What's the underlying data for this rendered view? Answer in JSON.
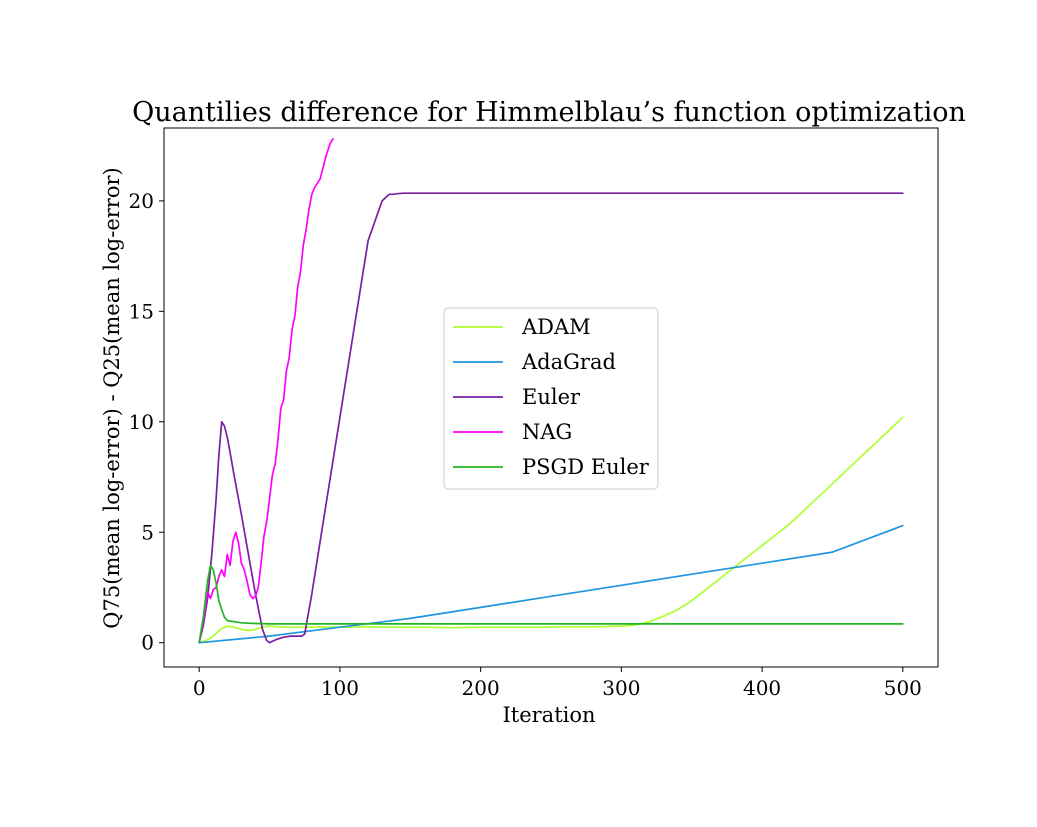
{
  "chart_data": {
    "type": "line",
    "title": "Quantilies difference for Himmelblau’s function optimization",
    "xlabel": "Iteration",
    "ylabel": "Q75(mean log-error) - Q25(mean log-error)",
    "xlim": [
      -25,
      525
    ],
    "ylim": [
      -1.1,
      23.3
    ],
    "xticks": [
      0,
      100,
      200,
      300,
      400,
      500
    ],
    "yticks": [
      0,
      5,
      10,
      15,
      20
    ],
    "grid": false,
    "legend_position": "center",
    "series": [
      {
        "name": "ADAM",
        "color": "#adff2f",
        "x": [
          0,
          5,
          10,
          15,
          20,
          25,
          30,
          35,
          40,
          45,
          50,
          60,
          70,
          80,
          90,
          100,
          120,
          140,
          160,
          180,
          200,
          220,
          240,
          260,
          280,
          300,
          310,
          320,
          330,
          340,
          350,
          360,
          370,
          380,
          390,
          400,
          410,
          420,
          430,
          440,
          450,
          460,
          470,
          480,
          490,
          500
        ],
        "y": [
          0,
          0.1,
          0.3,
          0.6,
          0.75,
          0.7,
          0.6,
          0.55,
          0.6,
          0.7,
          0.75,
          0.7,
          0.7,
          0.7,
          0.72,
          0.7,
          0.72,
          0.7,
          0.7,
          0.68,
          0.7,
          0.7,
          0.7,
          0.72,
          0.72,
          0.75,
          0.8,
          0.95,
          1.2,
          1.5,
          1.9,
          2.4,
          2.9,
          3.4,
          3.9,
          4.4,
          4.9,
          5.4,
          6.0,
          6.6,
          7.2,
          7.8,
          8.4,
          9.0,
          9.6,
          10.2
        ]
      },
      {
        "name": "AdaGrad",
        "color": "#1f96e0",
        "x": [
          0,
          50,
          100,
          150,
          200,
          250,
          300,
          350,
          400,
          450,
          500
        ],
        "y": [
          0,
          0.3,
          0.7,
          1.1,
          1.6,
          2.1,
          2.6,
          3.1,
          3.6,
          4.1,
          5.3
        ]
      },
      {
        "name": "Euler",
        "color": "#7b1fa2",
        "x": [
          0,
          3,
          6,
          9,
          12,
          14,
          16,
          18,
          20,
          22,
          25,
          30,
          35,
          40,
          45,
          48,
          50,
          55,
          60,
          65,
          70,
          73,
          75,
          80,
          90,
          100,
          110,
          120,
          130,
          135,
          138,
          140,
          145,
          150,
          200,
          300,
          400,
          500
        ],
        "y": [
          0,
          0.8,
          2.0,
          4.0,
          6.5,
          8.5,
          10.0,
          9.8,
          9.3,
          8.6,
          7.5,
          5.8,
          4.0,
          2.2,
          0.6,
          0.1,
          0.0,
          0.15,
          0.25,
          0.3,
          0.3,
          0.3,
          0.4,
          2.2,
          6.2,
          10.2,
          14.2,
          18.2,
          20.0,
          20.3,
          20.3,
          20.32,
          20.35,
          20.35,
          20.35,
          20.35,
          20.35,
          20.35
        ]
      },
      {
        "name": "NAG",
        "color": "#ff00ff",
        "x": [
          0,
          3,
          6,
          8,
          10,
          12,
          14,
          16,
          18,
          20,
          22,
          24,
          26,
          28,
          30,
          32,
          34,
          36,
          38,
          40,
          42,
          44,
          46,
          48,
          50,
          52,
          54,
          56,
          58,
          60,
          62,
          64,
          66,
          68,
          70,
          72,
          74,
          76,
          78,
          80,
          82,
          84,
          86,
          88,
          90,
          92,
          93,
          94,
          95
        ],
        "y": [
          0,
          1.0,
          2.3,
          2.0,
          2.4,
          2.5,
          3.0,
          3.3,
          3.0,
          4.0,
          3.5,
          4.6,
          5.0,
          4.5,
          3.6,
          3.3,
          2.8,
          2.2,
          2.0,
          2.1,
          2.5,
          3.6,
          4.8,
          5.5,
          6.5,
          7.6,
          8.1,
          9.2,
          10.6,
          11.0,
          12.3,
          12.9,
          14.2,
          14.8,
          16.1,
          16.8,
          18.0,
          18.7,
          19.6,
          20.3,
          20.6,
          20.8,
          21.0,
          21.5,
          22.0,
          22.4,
          22.6,
          22.7,
          22.8
        ]
      },
      {
        "name": "PSGD Euler",
        "color": "#22b522",
        "x": [
          0,
          3,
          6,
          8,
          10,
          12,
          14,
          16,
          18,
          20,
          25,
          30,
          40,
          50,
          60,
          80,
          100,
          150,
          200,
          250,
          300,
          350,
          400,
          450,
          500
        ],
        "y": [
          0,
          1.2,
          2.8,
          3.5,
          3.3,
          2.7,
          1.9,
          1.5,
          1.15,
          1.0,
          0.95,
          0.9,
          0.87,
          0.85,
          0.85,
          0.85,
          0.85,
          0.85,
          0.85,
          0.85,
          0.85,
          0.85,
          0.85,
          0.85,
          0.85
        ]
      }
    ]
  }
}
